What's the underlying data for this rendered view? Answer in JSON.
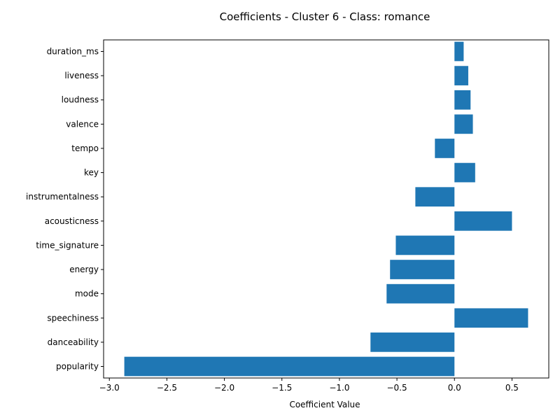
{
  "chart_data": {
    "type": "bar",
    "orientation": "horizontal",
    "title": "Coefficients - Cluster 6 - Class: romance",
    "xlabel": "Coefficient Value",
    "ylabel": "",
    "xlim": [
      -3.05,
      0.82
    ],
    "xticks": [
      -3.0,
      -2.5,
      -2.0,
      -1.5,
      -1.0,
      -0.5,
      0.0,
      0.5
    ],
    "xtick_labels": [
      "−3.0",
      "−2.5",
      "−2.0",
      "−1.5",
      "−1.0",
      "−0.5",
      "0.0",
      "0.5"
    ],
    "categories": [
      "popularity",
      "danceability",
      "speechiness",
      "mode",
      "energy",
      "time_signature",
      "acousticness",
      "instrumentalness",
      "key",
      "tempo",
      "valence",
      "loudness",
      "liveness",
      "duration_ms"
    ],
    "values": [
      -2.87,
      -0.73,
      0.64,
      -0.59,
      -0.56,
      -0.51,
      0.5,
      -0.34,
      0.18,
      -0.17,
      0.16,
      0.14,
      0.12,
      0.08
    ],
    "bar_color": "#1f77b4",
    "grid": false,
    "legend": "none"
  }
}
